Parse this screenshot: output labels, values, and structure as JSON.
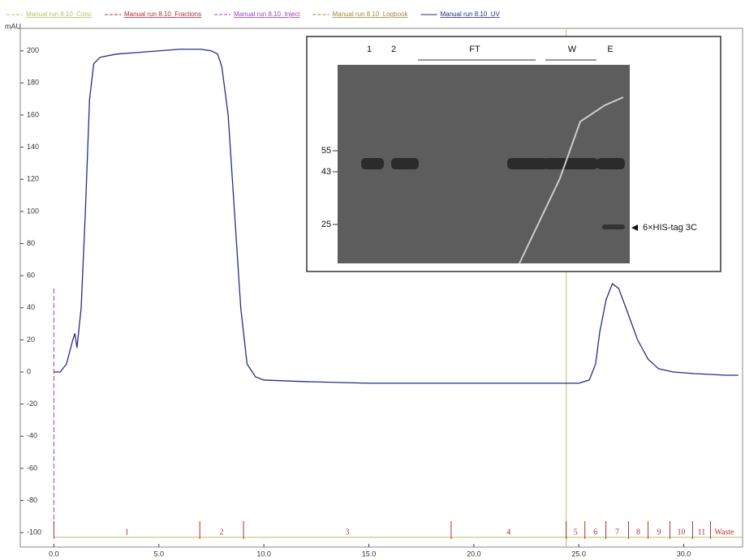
{
  "chart_data": {
    "type": "line",
    "y_label": "mAU",
    "x": [
      0.0,
      0.3,
      0.6,
      0.9,
      1.0,
      1.1,
      1.3,
      1.5,
      1.7,
      1.9,
      2.2,
      3.0,
      4.0,
      5.0,
      6.0,
      7.0,
      7.5,
      7.8,
      8.0,
      8.3,
      8.6,
      8.9,
      9.2,
      9.6,
      10.0,
      12.0,
      15.0,
      20.0,
      25.0,
      25.5,
      25.8,
      26.0,
      26.3,
      26.6,
      26.9,
      27.3,
      27.8,
      28.3,
      28.8,
      29.5,
      30.5,
      32.0,
      32.6
    ],
    "series": [
      {
        "name": "Manual run 8.10_Conc",
        "color": "#b5c26a",
        "values": null
      },
      {
        "name": "Manual run 8.10_Fractions",
        "color": "#b03030",
        "values": null
      },
      {
        "name": "Manual run 8.10_Inject",
        "color": "#a040c0",
        "values": null
      },
      {
        "name": "Manual run 8.10_Logbook",
        "color": "#a08a40",
        "values": null
      },
      {
        "name": "Manual run 8.10_UV",
        "color": "#2a2a8a",
        "values": [
          0,
          0,
          5,
          20,
          24,
          15,
          40,
          100,
          170,
          192,
          196,
          198,
          199,
          200,
          201,
          201,
          200,
          198,
          190,
          160,
          100,
          40,
          5,
          -3,
          -5,
          -6,
          -7,
          -7,
          -7,
          -5,
          5,
          25,
          45,
          55,
          52,
          38,
          20,
          8,
          2,
          0,
          -1,
          -2,
          -2
        ]
      }
    ],
    "xlim": [
      -1.6,
      32.8
    ],
    "ylim": [
      -109,
      214
    ],
    "xticks": [
      {
        "value": 0,
        "label": "0.0"
      },
      {
        "value": 5,
        "label": "5.0"
      },
      {
        "value": 10,
        "label": "10.0"
      },
      {
        "value": 15,
        "label": "15.0"
      },
      {
        "value": 20,
        "label": "20.0"
      },
      {
        "value": 25,
        "label": "25.0"
      },
      {
        "value": 30,
        "label": "30.0"
      }
    ],
    "yticks": [
      -100,
      -80,
      -60,
      -40,
      -20,
      0,
      20,
      40,
      60,
      80,
      100,
      120,
      140,
      160,
      180,
      200
    ],
    "fractions": {
      "starts": [
        0,
        6.95,
        9.03,
        18.92,
        24.4,
        25.29,
        26.29,
        27.37,
        28.3,
        29.34,
        30.42,
        31.27
      ],
      "labels": [
        "1",
        "2",
        "3",
        "4",
        "5",
        "6",
        "7",
        "8",
        "9",
        "10",
        "11",
        "Waste"
      ]
    },
    "inset": {
      "lanes": [
        "1",
        "2",
        "FT",
        "W",
        "E"
      ],
      "markers": [
        55,
        43,
        25
      ],
      "annotation": "6×HIS-tag 3C"
    }
  }
}
